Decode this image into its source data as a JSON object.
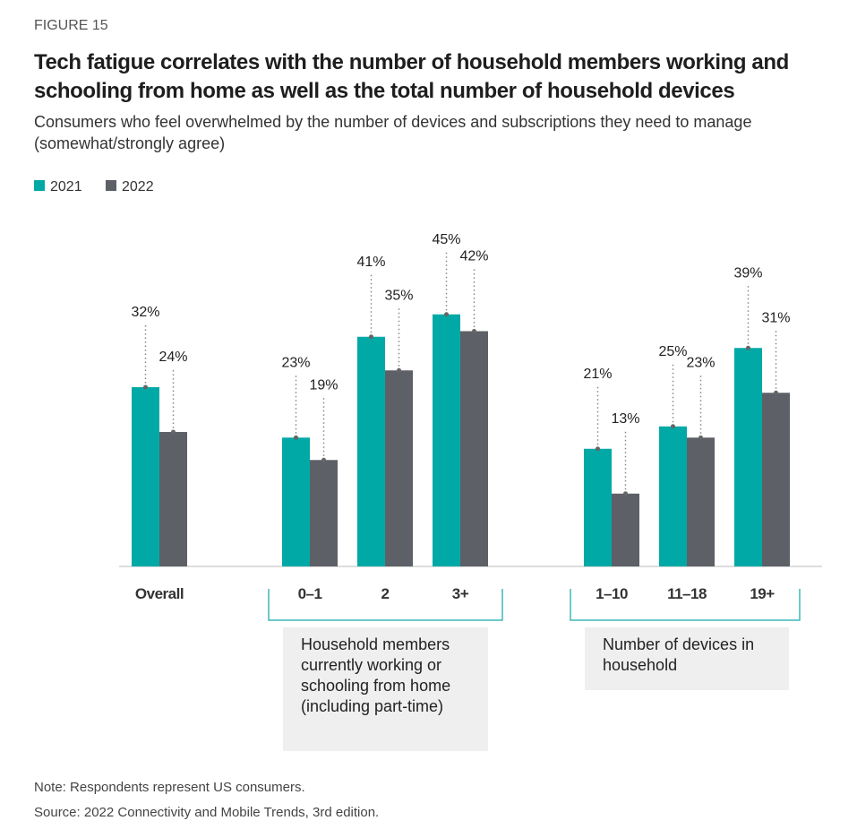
{
  "figure_label": "FIGURE 15",
  "chart_data": {
    "type": "bar",
    "title": "Tech fatigue correlates with the number of household members working and schooling from home as well as the total number of household devices",
    "subtitle": "Consumers who feel overwhelmed by the number of devices and subscriptions they need to manage (somewhat/strongly agree)",
    "categories": [
      "Overall",
      "0–1",
      "2",
      "3+",
      "1–10",
      "11–18",
      "19+"
    ],
    "series": [
      {
        "name": "2021",
        "color": "#00a9a6",
        "values": [
          32,
          23,
          41,
          45,
          21,
          25,
          39
        ],
        "value_labels": [
          "32%",
          "23%",
          "41%",
          "45%",
          "21%",
          "25%",
          "39%"
        ]
      },
      {
        "name": "2022",
        "color": "#5e6067",
        "values": [
          24,
          19,
          35,
          42,
          13,
          23,
          31
        ],
        "value_labels": [
          "24%",
          "19%",
          "35%",
          "42%",
          "13%",
          "23%",
          "31%"
        ]
      }
    ],
    "group_labels": [
      "Household members currently working or schooling from home (including part-time)",
      "Number of devices in household"
    ]
  },
  "note": "Note: Respondents represent US consumers.",
  "source": "Source: 2022 Connectivity and Mobile Trends, 3rd edition."
}
